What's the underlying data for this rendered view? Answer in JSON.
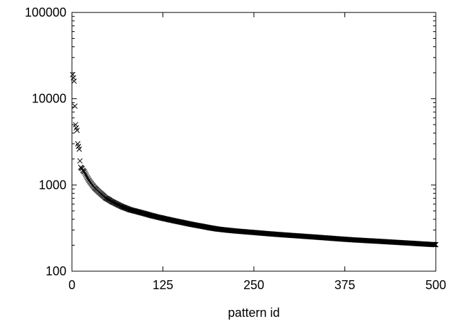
{
  "chart_data": {
    "type": "scatter",
    "title": "",
    "xlabel": "pattern id",
    "ylabel": "",
    "xlim": [
      0,
      500
    ],
    "ylim": [
      100,
      100000
    ],
    "yscale": "log",
    "grid": false,
    "marker": "x",
    "marker_color": "#000000",
    "x_ticks": [
      0,
      125,
      250,
      375,
      500
    ],
    "x_tick_labels": [
      "0",
      "125",
      "250",
      "375",
      "500"
    ],
    "y_ticks": [
      100,
      1000,
      10000,
      100000
    ],
    "y_tick_labels": [
      "100",
      "1000",
      "10000",
      "100000"
    ],
    "series": [
      {
        "points": [
          [
            1,
            19000
          ],
          [
            2,
            17500
          ],
          [
            3,
            16000
          ],
          [
            4,
            8200
          ],
          [
            5,
            5000
          ],
          [
            6,
            4600
          ],
          [
            7,
            4300
          ],
          [
            8,
            3000
          ],
          [
            9,
            2800
          ],
          [
            10,
            2600
          ],
          [
            11,
            1900
          ],
          [
            12,
            1600
          ],
          [
            14,
            1550
          ],
          [
            15,
            1480
          ],
          [
            17,
            1420
          ],
          [
            19,
            1320
          ],
          [
            21,
            1220
          ],
          [
            23,
            1140
          ],
          [
            25,
            1080
          ],
          [
            28,
            1000
          ],
          [
            31,
            930
          ],
          [
            34,
            880
          ],
          [
            37,
            830
          ],
          [
            40,
            790
          ],
          [
            43,
            750
          ],
          [
            46,
            710
          ],
          [
            50,
            680
          ],
          [
            55,
            640
          ],
          [
            60,
            610
          ],
          [
            65,
            580
          ],
          [
            70,
            555
          ],
          [
            75,
            535
          ],
          [
            80,
            515
          ],
          [
            90,
            490
          ],
          [
            100,
            465
          ],
          [
            110,
            440
          ],
          [
            120,
            420
          ],
          [
            130,
            402
          ],
          [
            140,
            385
          ],
          [
            150,
            370
          ],
          [
            160,
            355
          ],
          [
            170,
            342
          ],
          [
            180,
            330
          ],
          [
            190,
            318
          ],
          [
            200,
            308
          ],
          [
            215,
            298
          ],
          [
            230,
            290
          ],
          [
            250,
            281
          ],
          [
            270,
            272
          ],
          [
            290,
            264
          ],
          [
            310,
            257
          ],
          [
            330,
            250
          ],
          [
            350,
            243
          ],
          [
            370,
            236
          ],
          [
            390,
            230
          ],
          [
            410,
            225
          ],
          [
            430,
            220
          ],
          [
            450,
            215
          ],
          [
            470,
            210
          ],
          [
            490,
            205
          ],
          [
            500,
            203
          ]
        ]
      }
    ]
  }
}
